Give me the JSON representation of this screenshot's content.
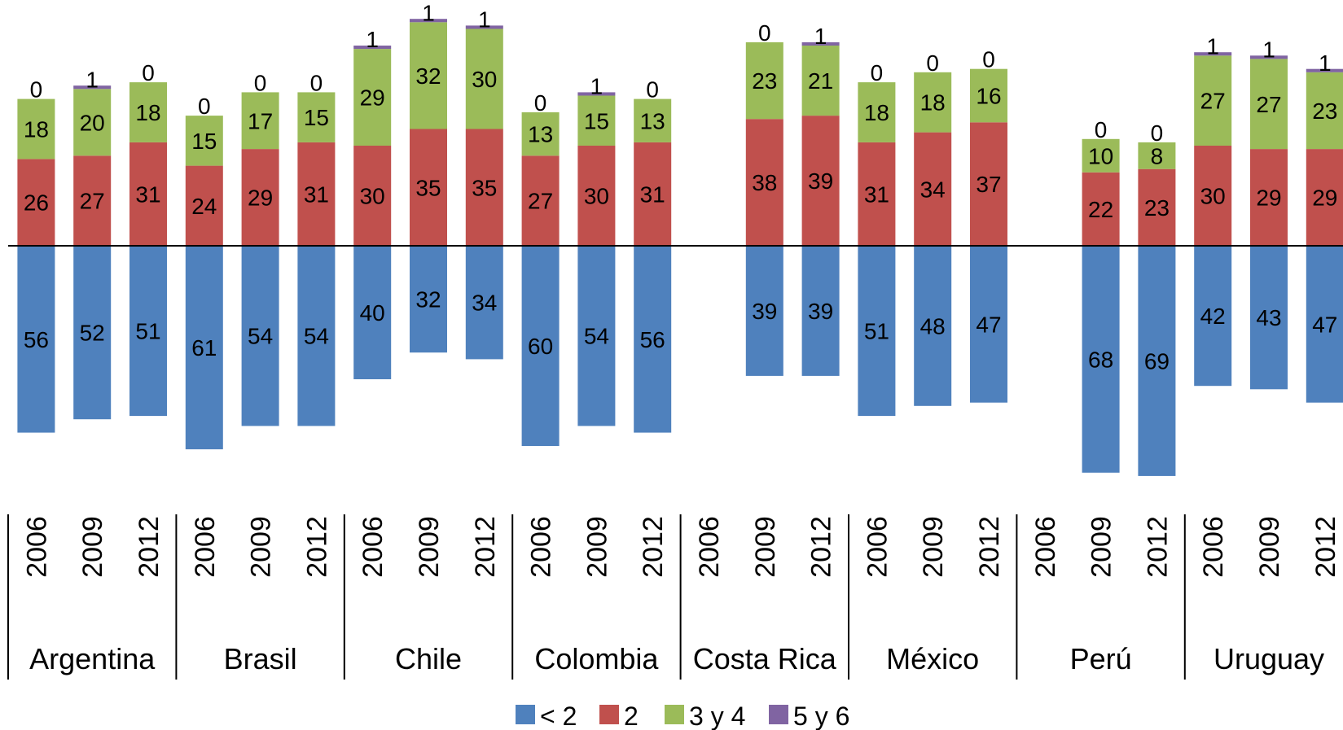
{
  "chart_data": {
    "type": "bar",
    "stacked": true,
    "diverging": true,
    "series": [
      {
        "name": "< 2",
        "color": "#4F81BD",
        "direction": "down"
      },
      {
        "name": "2",
        "color": "#C0504D",
        "direction": "up"
      },
      {
        "name": "3 y 4",
        "color": "#9BBB59",
        "direction": "up"
      },
      {
        "name": "5 y 6",
        "color": "#8064A2",
        "direction": "up"
      }
    ],
    "groups": [
      {
        "country": "Argentina",
        "years": [
          {
            "year": "2006",
            "values": [
              56,
              26,
              18,
              0
            ]
          },
          {
            "year": "2009",
            "values": [
              52,
              27,
              20,
              1
            ]
          },
          {
            "year": "2012",
            "values": [
              51,
              31,
              18,
              0
            ]
          }
        ]
      },
      {
        "country": "Brasil",
        "years": [
          {
            "year": "2006",
            "values": [
              61,
              24,
              15,
              0
            ]
          },
          {
            "year": "2009",
            "values": [
              54,
              29,
              17,
              0
            ]
          },
          {
            "year": "2012",
            "values": [
              54,
              31,
              15,
              0
            ]
          }
        ]
      },
      {
        "country": "Chile",
        "years": [
          {
            "year": "2006",
            "values": [
              40,
              30,
              29,
              1
            ]
          },
          {
            "year": "2009",
            "values": [
              32,
              35,
              32,
              1
            ]
          },
          {
            "year": "2012",
            "values": [
              34,
              35,
              30,
              1
            ]
          }
        ]
      },
      {
        "country": "Colombia",
        "years": [
          {
            "year": "2006",
            "values": [
              60,
              27,
              13,
              0
            ]
          },
          {
            "year": "2009",
            "values": [
              54,
              30,
              15,
              1
            ]
          },
          {
            "year": "2012",
            "values": [
              56,
              31,
              13,
              0
            ]
          }
        ]
      },
      {
        "country": "Costa Rica",
        "years": [
          {
            "year": "2006",
            "values": null
          },
          {
            "year": "2009",
            "values": [
              39,
              38,
              23,
              0
            ]
          },
          {
            "year": "2012",
            "values": [
              39,
              39,
              21,
              1
            ]
          }
        ]
      },
      {
        "country": "México",
        "years": [
          {
            "year": "2006",
            "values": [
              51,
              31,
              18,
              0
            ]
          },
          {
            "year": "2009",
            "values": [
              48,
              34,
              18,
              0
            ]
          },
          {
            "year": "2012",
            "values": [
              47,
              37,
              16,
              0
            ]
          }
        ]
      },
      {
        "country": "Perú",
        "years": [
          {
            "year": "2006",
            "values": null
          },
          {
            "year": "2009",
            "values": [
              68,
              22,
              10,
              0
            ]
          },
          {
            "year": "2012",
            "values": [
              69,
              23,
              8,
              0
            ]
          }
        ]
      },
      {
        "country": "Uruguay",
        "years": [
          {
            "year": "2006",
            "values": [
              42,
              30,
              27,
              1
            ]
          },
          {
            "year": "2009",
            "values": [
              43,
              29,
              27,
              1
            ]
          },
          {
            "year": "2012",
            "values": [
              47,
              29,
              23,
              1
            ]
          }
        ]
      }
    ],
    "legend_position": "bottom",
    "grid": false
  }
}
